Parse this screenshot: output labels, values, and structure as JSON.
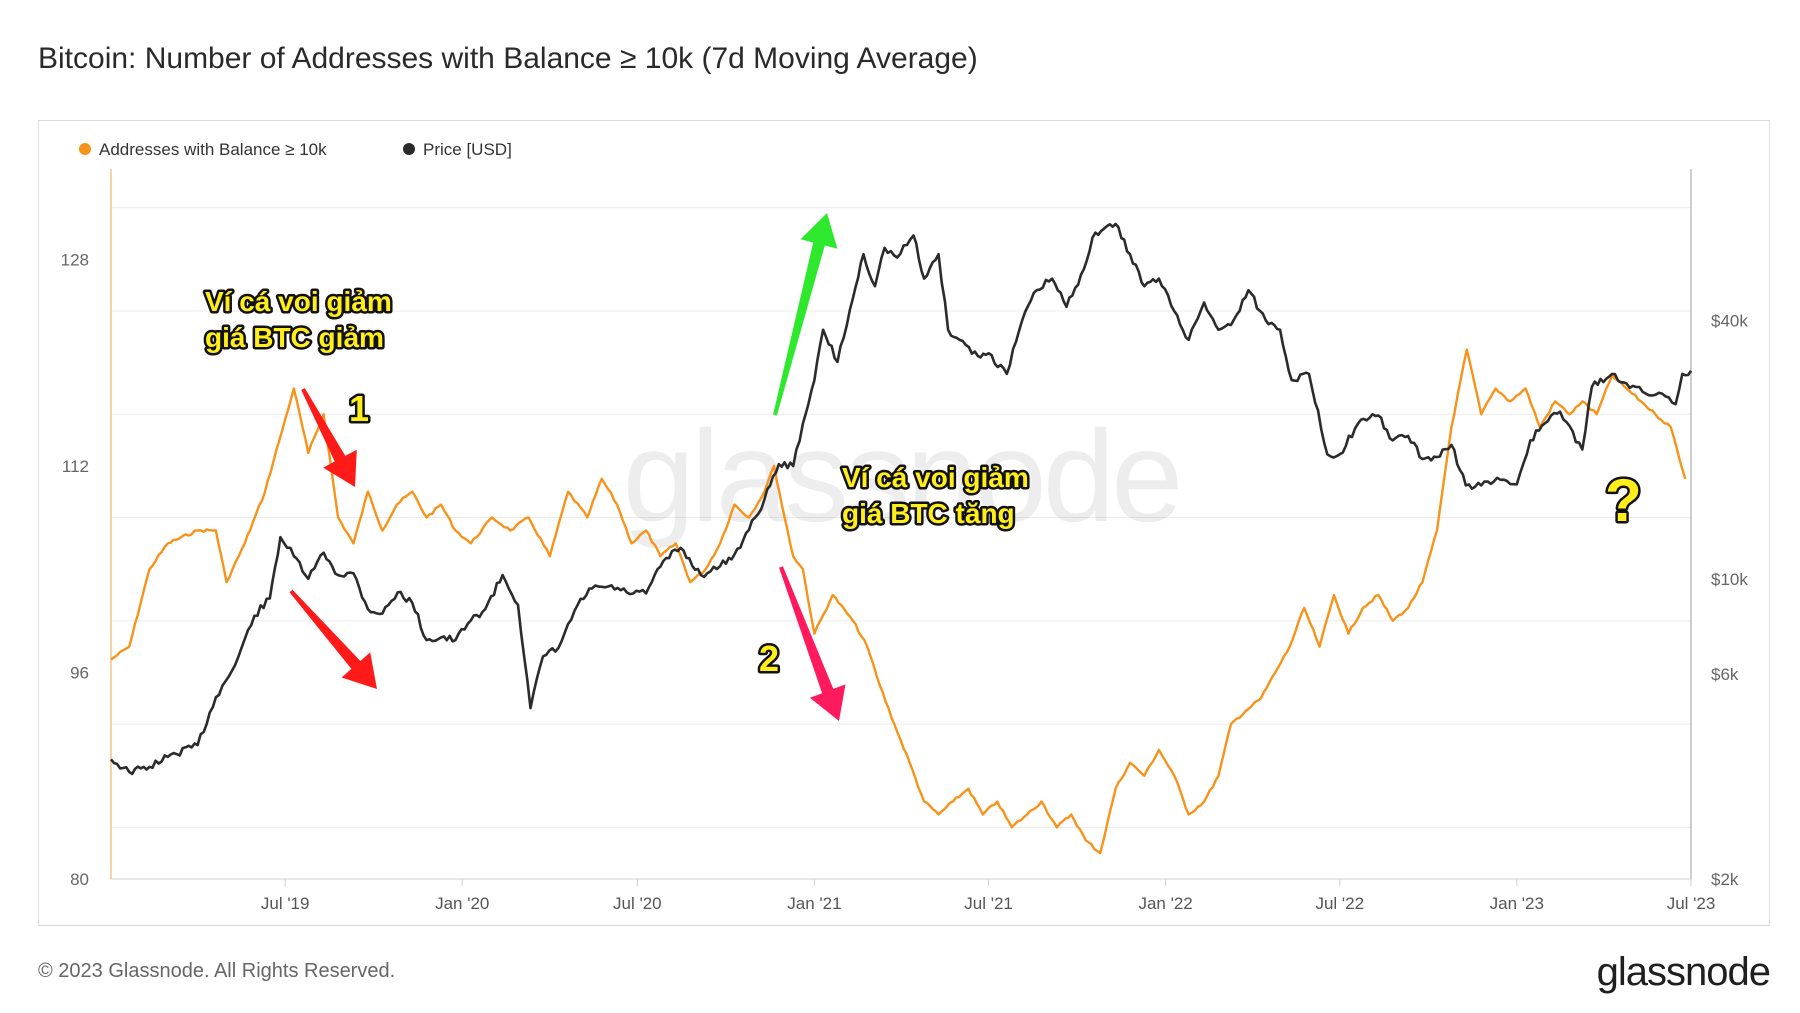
{
  "title": "Bitcoin: Number of Addresses with Balance ≥ 10k (7d Moving Average)",
  "footer": {
    "copyright": "© 2023 Glassnode. All Rights Reserved.",
    "brand": "glassnode"
  },
  "watermark": "glassnode",
  "annotations": {
    "whale_down_price_down": [
      "Ví cá voi giảm",
      "giá BTC giảm"
    ],
    "whale_down_price_up": [
      "Ví cá voi giảm",
      "giá BTC tăng"
    ],
    "marker_1": "1",
    "marker_2": "2",
    "question": "?"
  },
  "colors": {
    "addresses": "#f7931a",
    "price": "#2b2b2b",
    "arrow_red": "#ff1a1a",
    "arrow_pink": "#ff1a5e",
    "arrow_green": "#2ee82e",
    "annotation_text": "#ffee1a"
  },
  "chart_data": {
    "type": "line",
    "legend_position": "top-left",
    "grid": true,
    "x_ticks": [
      "Jul '19",
      "Jan '20",
      "Jul '20",
      "Jan '21",
      "Jul '21",
      "Jan '22",
      "Jul '22",
      "Jan '23",
      "Jul '23"
    ],
    "x_tick_dates": [
      "2019-07-01",
      "2020-01-01",
      "2020-07-01",
      "2021-01-01",
      "2021-07-01",
      "2022-01-01",
      "2022-07-01",
      "2023-01-01",
      "2023-07-01"
    ],
    "x_range": [
      "2019-01-01",
      "2023-07-01"
    ],
    "y_left": {
      "ticks": [
        80,
        96,
        112,
        128
      ],
      "range": [
        80,
        135
      ]
    },
    "y_right": {
      "ticks": [
        "$2k",
        "$6k",
        "$10k",
        "$40k"
      ],
      "tick_values": [
        2000,
        6000,
        10000,
        40000
      ],
      "scale": "log",
      "range": [
        2000,
        90000
      ]
    },
    "series": [
      {
        "name": "Addresses with Balance ≥ 10k",
        "axis": "left",
        "points": [
          [
            "2019-01-01",
            97
          ],
          [
            "2019-01-20",
            98
          ],
          [
            "2019-02-10",
            104
          ],
          [
            "2019-03-01",
            106
          ],
          [
            "2019-04-01",
            107
          ],
          [
            "2019-04-20",
            107
          ],
          [
            "2019-05-01",
            103
          ],
          [
            "2019-05-20",
            106
          ],
          [
            "2019-06-10",
            110
          ],
          [
            "2019-06-25",
            114
          ],
          [
            "2019-07-10",
            118
          ],
          [
            "2019-07-25",
            113
          ],
          [
            "2019-08-10",
            116
          ],
          [
            "2019-08-25",
            108
          ],
          [
            "2019-09-10",
            106
          ],
          [
            "2019-09-25",
            110
          ],
          [
            "2019-10-10",
            107
          ],
          [
            "2019-10-25",
            109
          ],
          [
            "2019-11-10",
            110
          ],
          [
            "2019-11-25",
            108
          ],
          [
            "2019-12-10",
            109
          ],
          [
            "2019-12-25",
            107
          ],
          [
            "2020-01-10",
            106
          ],
          [
            "2020-02-01",
            108
          ],
          [
            "2020-02-20",
            107
          ],
          [
            "2020-03-10",
            108
          ],
          [
            "2020-04-01",
            105
          ],
          [
            "2020-04-20",
            110
          ],
          [
            "2020-05-10",
            108
          ],
          [
            "2020-05-25",
            111
          ],
          [
            "2020-06-10",
            109
          ],
          [
            "2020-06-25",
            106
          ],
          [
            "2020-07-10",
            107
          ],
          [
            "2020-07-25",
            105
          ],
          [
            "2020-08-10",
            106
          ],
          [
            "2020-08-25",
            103
          ],
          [
            "2020-09-10",
            104
          ],
          [
            "2020-09-25",
            106
          ],
          [
            "2020-10-10",
            109
          ],
          [
            "2020-10-25",
            108
          ],
          [
            "2020-11-10",
            110
          ],
          [
            "2020-11-20",
            112
          ],
          [
            "2020-12-01",
            108
          ],
          [
            "2020-12-10",
            105
          ],
          [
            "2020-12-20",
            104
          ],
          [
            "2021-01-01",
            99
          ],
          [
            "2021-01-20",
            102
          ],
          [
            "2021-02-10",
            100
          ],
          [
            "2021-02-25",
            98
          ],
          [
            "2021-03-10",
            95
          ],
          [
            "2021-03-25",
            92
          ],
          [
            "2021-04-10",
            89
          ],
          [
            "2021-04-25",
            86
          ],
          [
            "2021-05-10",
            85
          ],
          [
            "2021-05-25",
            86
          ],
          [
            "2021-06-10",
            87
          ],
          [
            "2021-06-25",
            85
          ],
          [
            "2021-07-10",
            86
          ],
          [
            "2021-07-25",
            84
          ],
          [
            "2021-08-10",
            85
          ],
          [
            "2021-08-25",
            86
          ],
          [
            "2021-09-10",
            84
          ],
          [
            "2021-09-25",
            85
          ],
          [
            "2021-10-10",
            83
          ],
          [
            "2021-10-25",
            82
          ],
          [
            "2021-11-10",
            87
          ],
          [
            "2021-11-25",
            89
          ],
          [
            "2021-12-10",
            88
          ],
          [
            "2021-12-25",
            90
          ],
          [
            "2022-01-10",
            88
          ],
          [
            "2022-01-25",
            85
          ],
          [
            "2022-02-10",
            86
          ],
          [
            "2022-02-25",
            88
          ],
          [
            "2022-03-10",
            92
          ],
          [
            "2022-03-25",
            93
          ],
          [
            "2022-04-10",
            94
          ],
          [
            "2022-04-25",
            96
          ],
          [
            "2022-05-10",
            98
          ],
          [
            "2022-05-25",
            101
          ],
          [
            "2022-06-10",
            98
          ],
          [
            "2022-06-25",
            102
          ],
          [
            "2022-07-10",
            99
          ],
          [
            "2022-07-25",
            101
          ],
          [
            "2022-08-10",
            102
          ],
          [
            "2022-08-25",
            100
          ],
          [
            "2022-09-10",
            101
          ],
          [
            "2022-09-25",
            103
          ],
          [
            "2022-10-10",
            107
          ],
          [
            "2022-10-25",
            115
          ],
          [
            "2022-11-10",
            121
          ],
          [
            "2022-11-25",
            116
          ],
          [
            "2022-12-10",
            118
          ],
          [
            "2022-12-25",
            117
          ],
          [
            "2023-01-10",
            118
          ],
          [
            "2023-01-25",
            115
          ],
          [
            "2023-02-10",
            117
          ],
          [
            "2023-02-25",
            116
          ],
          [
            "2023-03-10",
            117
          ],
          [
            "2023-03-25",
            116
          ],
          [
            "2023-04-10",
            119
          ],
          [
            "2023-04-25",
            118
          ],
          [
            "2023-05-10",
            117
          ],
          [
            "2023-05-25",
            116
          ],
          [
            "2023-06-10",
            115
          ],
          [
            "2023-06-25",
            111
          ]
        ]
      },
      {
        "name": "Price [USD]",
        "axis": "right",
        "points": [
          [
            "2019-01-01",
            3800
          ],
          [
            "2019-01-20",
            3550
          ],
          [
            "2019-02-10",
            3650
          ],
          [
            "2019-03-01",
            3850
          ],
          [
            "2019-04-01",
            4100
          ],
          [
            "2019-04-20",
            5300
          ],
          [
            "2019-05-10",
            6300
          ],
          [
            "2019-05-30",
            8200
          ],
          [
            "2019-06-15",
            9000
          ],
          [
            "2019-06-26",
            12500
          ],
          [
            "2019-07-10",
            11300
          ],
          [
            "2019-07-25",
            10000
          ],
          [
            "2019-08-10",
            11500
          ],
          [
            "2019-08-25",
            10200
          ],
          [
            "2019-09-10",
            10300
          ],
          [
            "2019-09-25",
            8500
          ],
          [
            "2019-10-10",
            8300
          ],
          [
            "2019-10-26",
            9300
          ],
          [
            "2019-11-10",
            8800
          ],
          [
            "2019-11-25",
            7200
          ],
          [
            "2019-12-10",
            7300
          ],
          [
            "2019-12-25",
            7200
          ],
          [
            "2020-01-10",
            8000
          ],
          [
            "2020-01-25",
            8500
          ],
          [
            "2020-02-12",
            10200
          ],
          [
            "2020-02-28",
            8700
          ],
          [
            "2020-03-12",
            5000
          ],
          [
            "2020-03-25",
            6600
          ],
          [
            "2020-04-10",
            6900
          ],
          [
            "2020-04-30",
            8700
          ],
          [
            "2020-05-15",
            9500
          ],
          [
            "2020-06-01",
            9600
          ],
          [
            "2020-06-20",
            9300
          ],
          [
            "2020-07-10",
            9250
          ],
          [
            "2020-07-28",
            11000
          ],
          [
            "2020-08-15",
            11800
          ],
          [
            "2020-09-05",
            10200
          ],
          [
            "2020-09-25",
            10700
          ],
          [
            "2020-10-10",
            11400
          ],
          [
            "2020-10-25",
            13000
          ],
          [
            "2020-11-10",
            15300
          ],
          [
            "2020-11-25",
            18500
          ],
          [
            "2020-12-10",
            18300
          ],
          [
            "2020-12-20",
            23000
          ],
          [
            "2021-01-01",
            29000
          ],
          [
            "2021-01-10",
            38000
          ],
          [
            "2021-01-25",
            32000
          ],
          [
            "2021-02-10",
            45000
          ],
          [
            "2021-02-21",
            57000
          ],
          [
            "2021-03-05",
            48000
          ],
          [
            "2021-03-15",
            59000
          ],
          [
            "2021-03-28",
            56000
          ],
          [
            "2021-04-14",
            63000
          ],
          [
            "2021-04-25",
            50000
          ],
          [
            "2021-05-10",
            57000
          ],
          [
            "2021-05-20",
            38000
          ],
          [
            "2021-06-01",
            36000
          ],
          [
            "2021-06-20",
            33000
          ],
          [
            "2021-07-01",
            33500
          ],
          [
            "2021-07-20",
            30000
          ],
          [
            "2021-08-05",
            40000
          ],
          [
            "2021-08-20",
            47000
          ],
          [
            "2021-09-05",
            50000
          ],
          [
            "2021-09-20",
            43000
          ],
          [
            "2021-10-05",
            51000
          ],
          [
            "2021-10-20",
            64000
          ],
          [
            "2021-11-10",
            67000
          ],
          [
            "2021-11-25",
            57000
          ],
          [
            "2021-12-10",
            48000
          ],
          [
            "2021-12-25",
            50000
          ],
          [
            "2022-01-10",
            42000
          ],
          [
            "2022-01-25",
            36000
          ],
          [
            "2022-02-10",
            44000
          ],
          [
            "2022-02-25",
            38000
          ],
          [
            "2022-03-10",
            39000
          ],
          [
            "2022-03-28",
            47000
          ],
          [
            "2022-04-15",
            40000
          ],
          [
            "2022-04-30",
            38000
          ],
          [
            "2022-05-12",
            29000
          ],
          [
            "2022-05-30",
            30000
          ],
          [
            "2022-06-18",
            19500
          ],
          [
            "2022-07-01",
            19500
          ],
          [
            "2022-07-20",
            23000
          ],
          [
            "2022-08-10",
            24000
          ],
          [
            "2022-08-25",
            21000
          ],
          [
            "2022-09-10",
            21500
          ],
          [
            "2022-09-25",
            19000
          ],
          [
            "2022-10-10",
            19200
          ],
          [
            "2022-10-25",
            20500
          ],
          [
            "2022-11-09",
            16500
          ],
          [
            "2022-11-25",
            16500
          ],
          [
            "2022-12-15",
            17000
          ],
          [
            "2023-01-01",
            16600
          ],
          [
            "2023-01-15",
            21000
          ],
          [
            "2023-01-30",
            23000
          ],
          [
            "2023-02-15",
            24500
          ],
          [
            "2023-03-10",
            20000
          ],
          [
            "2023-03-20",
            28000
          ],
          [
            "2023-04-10",
            30000
          ],
          [
            "2023-04-25",
            28500
          ],
          [
            "2023-05-15",
            27000
          ],
          [
            "2023-06-01",
            27000
          ],
          [
            "2023-06-15",
            25500
          ],
          [
            "2023-06-22",
            30000
          ],
          [
            "2023-07-01",
            30500
          ]
        ]
      }
    ]
  }
}
